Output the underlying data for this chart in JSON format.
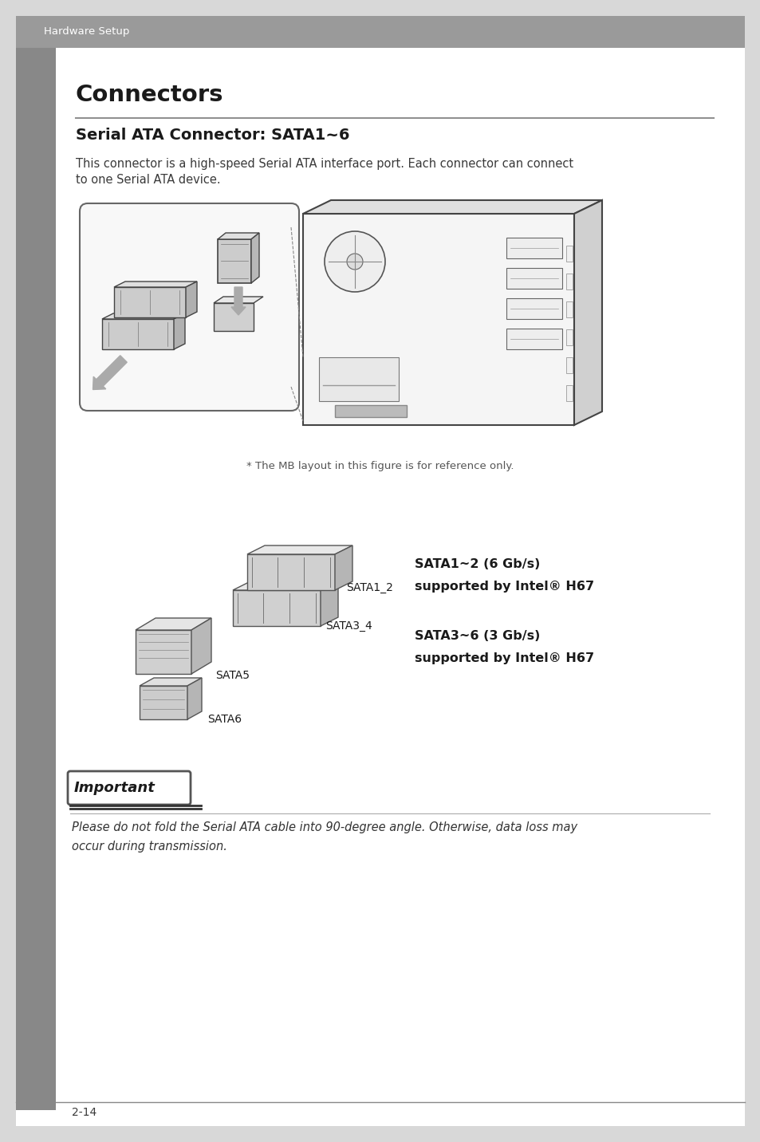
{
  "page_bg": "#ffffff",
  "outer_bg": "#d8d8d8",
  "header_bar_color": "#9a9a9a",
  "header_text": "Hardware Setup",
  "header_text_color": "#3a3a3a",
  "left_bar_color": "#888888",
  "title": "Connectors",
  "title_color": "#1a1a1a",
  "title_underline_color": "#909090",
  "subtitle": "Serial ATA Connector: SATA1~6",
  "subtitle_color": "#1a1a1a",
  "body_line1": "This connector is a high-speed Serial ATA interface port. Each connector can connect",
  "body_line2": "to one Serial ATA device.",
  "body_text_color": "#3a3a3a",
  "figure_caption": "* The MB layout in this figure is for reference only.",
  "sata_label_1": "SATA1_2",
  "sata_label_2": "SATA3_4",
  "sata_label_3": "SATA5",
  "sata_label_4": "SATA6",
  "sata_info_1": "SATA1~2 (6 Gb/s)",
  "sata_info_2": "supported by Intel® H67",
  "sata_info_3": "SATA3~6 (3 Gb/s)",
  "sata_info_4": "supported by Intel® H67",
  "important_label": "Important",
  "important_text_1": "Please do not fold the Serial ATA cable into 90-degree angle. Otherwise, data loss may",
  "important_text_2": "occur during transmission.",
  "footer_text": "2-14",
  "line_color": "#aaaaaa"
}
